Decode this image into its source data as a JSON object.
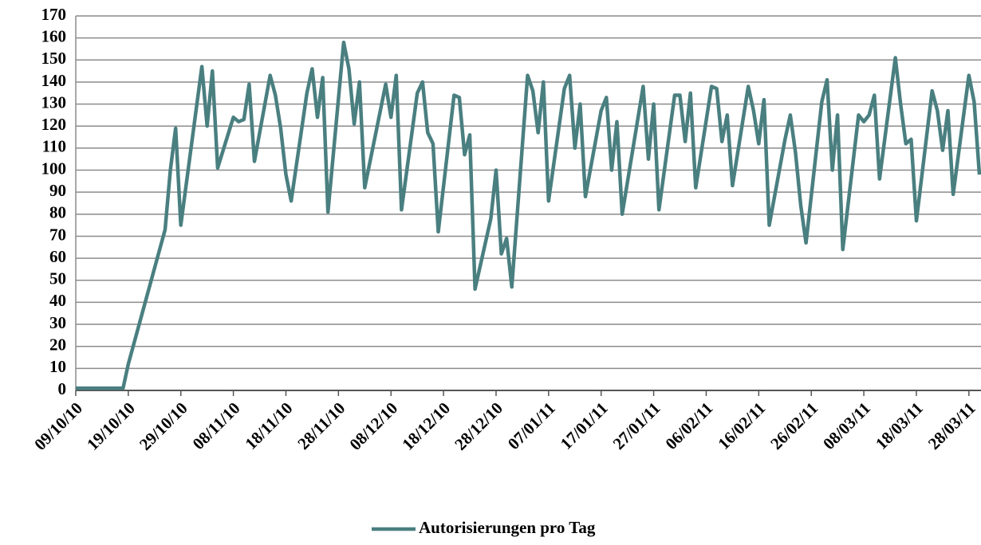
{
  "chart_data": {
    "type": "line",
    "x": [
      "2010-10-09",
      "2010-10-18",
      "2010-10-19",
      "2010-10-26",
      "2010-10-27",
      "2010-10-28",
      "2010-10-29",
      "2010-11-02",
      "2010-11-03",
      "2010-11-04",
      "2010-11-05",
      "2010-11-08",
      "2010-11-09",
      "2010-11-10",
      "2010-11-11",
      "2010-11-12",
      "2010-11-15",
      "2010-11-16",
      "2010-11-17",
      "2010-11-18",
      "2010-11-19",
      "2010-11-22",
      "2010-11-23",
      "2010-11-24",
      "2010-11-25",
      "2010-11-26",
      "2010-11-29",
      "2010-11-30",
      "2010-12-01",
      "2010-12-02",
      "2010-12-03",
      "2010-12-07",
      "2010-12-08",
      "2010-12-09",
      "2010-12-10",
      "2010-12-13",
      "2010-12-14",
      "2010-12-15",
      "2010-12-16",
      "2010-12-17",
      "2010-12-20",
      "2010-12-21",
      "2010-12-22",
      "2010-12-23",
      "2010-12-24",
      "2010-12-27",
      "2010-12-28",
      "2010-12-29",
      "2010-12-30",
      "2010-12-31",
      "2011-01-03",
      "2011-01-04",
      "2011-01-05",
      "2011-01-06",
      "2011-01-07",
      "2011-01-10",
      "2011-01-11",
      "2011-01-12",
      "2011-01-13",
      "2011-01-14",
      "2011-01-17",
      "2011-01-18",
      "2011-01-19",
      "2011-01-20",
      "2011-01-21",
      "2011-01-25",
      "2011-01-26",
      "2011-01-27",
      "2011-01-28",
      "2011-01-31",
      "2011-02-01",
      "2011-02-02",
      "2011-02-03",
      "2011-02-04",
      "2011-02-07",
      "2011-02-08",
      "2011-02-09",
      "2011-02-10",
      "2011-02-11",
      "2011-02-14",
      "2011-02-15",
      "2011-02-16",
      "2011-02-17",
      "2011-02-18",
      "2011-02-21",
      "2011-02-22",
      "2011-02-23",
      "2011-02-24",
      "2011-02-25",
      "2011-02-28",
      "2011-03-01",
      "2011-03-02",
      "2011-03-03",
      "2011-03-04",
      "2011-03-07",
      "2011-03-08",
      "2011-03-09",
      "2011-03-10",
      "2011-03-11",
      "2011-03-14",
      "2011-03-15",
      "2011-03-16",
      "2011-03-17",
      "2011-03-18",
      "2011-03-21",
      "2011-03-22",
      "2011-03-23",
      "2011-03-24",
      "2011-03-25",
      "2011-03-28",
      "2011-03-29",
      "2011-03-30"
    ],
    "series": [
      {
        "name": "Autorisierungen pro Tag",
        "color": "#4a7f80",
        "values": [
          1,
          1,
          12,
          73,
          100,
          119,
          75,
          147,
          120,
          145,
          101,
          124,
          122,
          123,
          139,
          104,
          143,
          134,
          119,
          98,
          86,
          135,
          146,
          124,
          142,
          81,
          158,
          146,
          121,
          140,
          92,
          139,
          124,
          143,
          82,
          135,
          140,
          117,
          112,
          72,
          134,
          133,
          107,
          116,
          46,
          78,
          100,
          62,
          69,
          47,
          143,
          136,
          117,
          140,
          86,
          137,
          143,
          110,
          130,
          88,
          127,
          133,
          100,
          122,
          80,
          138,
          105,
          130,
          82,
          134,
          134,
          113,
          135,
          92,
          138,
          137,
          113,
          125,
          93,
          138,
          127,
          112,
          132,
          75,
          114,
          125,
          108,
          84,
          67,
          131,
          141,
          100,
          125,
          64,
          125,
          122,
          125,
          134,
          96,
          151,
          130,
          112,
          114,
          77,
          136,
          127,
          109,
          127,
          89,
          143,
          131,
          98
        ]
      }
    ],
    "xlim": [
      "2010-10-09",
      "2011-03-30"
    ],
    "xticks": [
      {
        "value": "2010-10-09",
        "label": "09/10/10"
      },
      {
        "value": "2010-10-19",
        "label": "19/10/10"
      },
      {
        "value": "2010-10-29",
        "label": "29/10/10"
      },
      {
        "value": "2010-11-08",
        "label": "08/11/10"
      },
      {
        "value": "2010-11-18",
        "label": "18/11/10"
      },
      {
        "value": "2010-11-28",
        "label": "28/11/10"
      },
      {
        "value": "2010-12-08",
        "label": "08/12/10"
      },
      {
        "value": "2010-12-18",
        "label": "18/12/10"
      },
      {
        "value": "2010-12-28",
        "label": "28/12/10"
      },
      {
        "value": "2011-01-07",
        "label": "07/01/11"
      },
      {
        "value": "2011-01-17",
        "label": "17/01/11"
      },
      {
        "value": "2011-01-27",
        "label": "27/01/11"
      },
      {
        "value": "2011-02-06",
        "label": "06/02/11"
      },
      {
        "value": "2011-02-16",
        "label": "16/02/11"
      },
      {
        "value": "2011-02-26",
        "label": "26/02/11"
      },
      {
        "value": "2011-03-08",
        "label": "08/03/11"
      },
      {
        "value": "2011-03-18",
        "label": "18/03/11"
      },
      {
        "value": "2011-03-28",
        "label": "28/03/11"
      }
    ],
    "ylim": [
      0,
      170
    ],
    "yticks": [
      0,
      10,
      20,
      30,
      40,
      50,
      60,
      70,
      80,
      90,
      100,
      110,
      120,
      130,
      140,
      150,
      160,
      170
    ],
    "grid": true,
    "legend": "bottom"
  }
}
